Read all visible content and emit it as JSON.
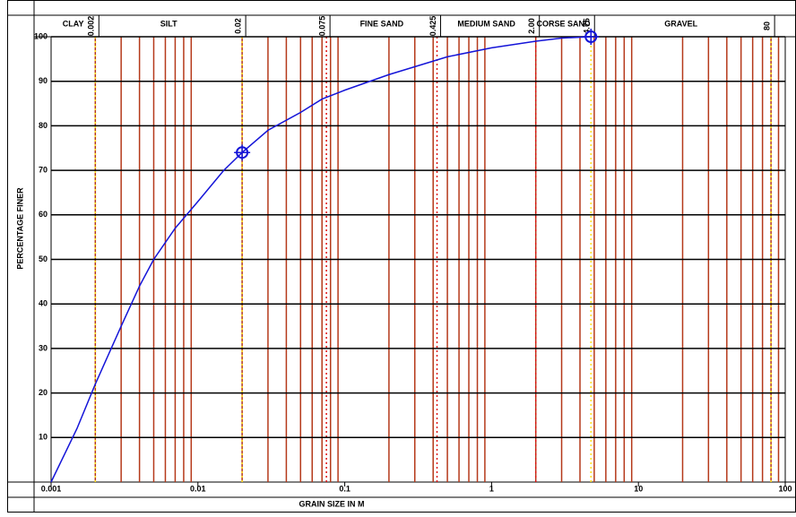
{
  "chart_data": {
    "type": "line",
    "x_label": "GRAIN SIZE IN M",
    "y_label": "PERCENTAGE FINER",
    "log_x": true,
    "grid": true,
    "xlim": [
      0.001,
      100
    ],
    "ylim": [
      0,
      100
    ],
    "xticks": [
      0.001,
      0.01,
      0.1,
      1,
      10,
      100
    ],
    "x_minor_ticks": [
      0.002,
      0.003,
      0.004,
      0.005,
      0.006,
      0.007,
      0.008,
      0.009,
      0.02,
      0.03,
      0.04,
      0.05,
      0.06,
      0.07,
      0.08,
      0.09,
      0.2,
      0.3,
      0.4,
      0.5,
      0.6,
      0.7,
      0.8,
      0.9,
      2,
      3,
      4,
      5,
      6,
      7,
      8,
      9,
      20,
      30,
      40,
      50,
      60,
      70,
      80,
      90
    ],
    "minor_grid_color": "#b5391a",
    "yticks": [
      10,
      20,
      30,
      40,
      50,
      60,
      70,
      80,
      90,
      100
    ],
    "boundaries": [
      {
        "value": 0.002,
        "label": "0.002",
        "color": "#ffe01a"
      },
      {
        "value": 0.02,
        "label": "0.02",
        "color": "#ffe01a"
      },
      {
        "value": 0.075,
        "label": "0.075",
        "color": "#e01010"
      },
      {
        "value": 0.425,
        "label": "0.425",
        "color": "#e01010"
      },
      {
        "value": 2,
        "label": "2.00",
        "color": "#e01010"
      },
      {
        "value": 4.75,
        "label": "4.75",
        "color": "#ffe01a"
      },
      {
        "value": 80,
        "label": "80",
        "color": "#ffe01a"
      }
    ],
    "zones": [
      "CLAY",
      "SILT",
      null,
      "FINE SAND",
      "MEDIUM SAND",
      "CORSE SAND",
      "GRAVEL",
      null
    ],
    "series": [
      {
        "color": "#1414d8",
        "marker": false,
        "x": [
          0.001,
          0.0015,
          0.002,
          0.003,
          0.004,
          0.005,
          0.007,
          0.01,
          0.015,
          0.02,
          0.03,
          0.05,
          0.07,
          0.1,
          0.2,
          0.5,
          1,
          2,
          3,
          4.75
        ],
        "values": [
          0,
          12,
          22,
          35,
          44,
          50,
          57,
          63,
          70,
          74,
          79,
          83,
          86,
          88,
          91.5,
          95.5,
          97.5,
          99,
          99.7,
          100
        ]
      },
      {
        "color": "#1414d8",
        "marker": true,
        "x": [
          0.02,
          4.75
        ],
        "values": [
          74,
          100
        ]
      }
    ]
  }
}
